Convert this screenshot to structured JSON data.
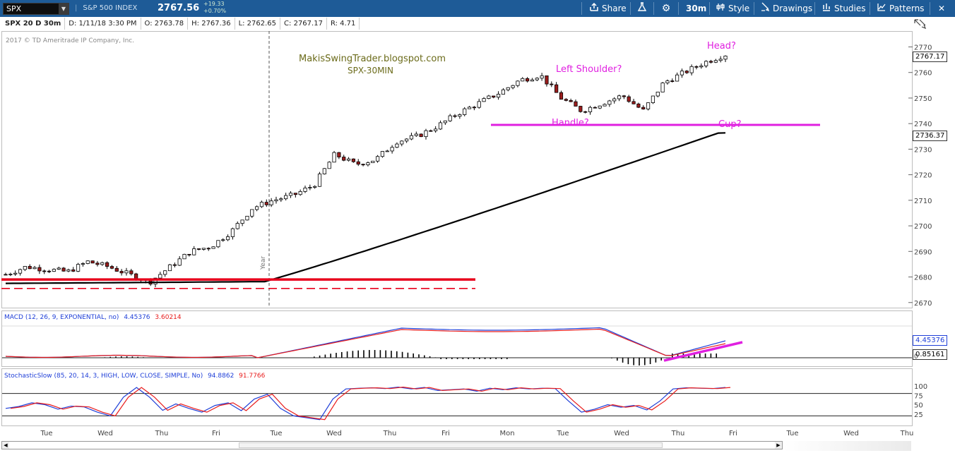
{
  "toolbar": {
    "symbol": "SPX",
    "dropdown_glyph": "▼",
    "instrument_name": "S&P 500 INDEX",
    "last_price": "2767.56",
    "change_abs": "+19.33",
    "change_pct": "+0.70%",
    "buttons": {
      "share": "Share",
      "timeframe": "30m",
      "style": "Style",
      "drawings": "Drawings",
      "studies": "Studies",
      "patterns": "Patterns"
    },
    "icons": [
      "share-icon",
      "flask-icon",
      "gear-icon",
      "style-icon",
      "drawings-icon",
      "studies-icon",
      "patterns-icon",
      "close-icon"
    ]
  },
  "info_bar": {
    "period": "SPX 20 D 30m",
    "date": "D: 1/11/18 3:30 PM",
    "open": "O: 2763.78",
    "high": "H: 2767.36",
    "low": "L: 2762.65",
    "close": "C: 2767.17",
    "range": "R: 4.71"
  },
  "copyright": "2017 © TD Ameritrade IP Company, Inc.",
  "annotations": {
    "blog": "MakisSwingTrader.blogspot.com",
    "timeframe": "SPX-30MIN",
    "head": "Head?",
    "left_shoulder": "Left Shoulder?",
    "handle": "Handle?",
    "cup": "Cup?",
    "year_marker": "Year"
  },
  "colors": {
    "toolbar_bg": "#1e5b97",
    "annotation_magenta": "#e020e0",
    "annotation_olive": "#6b6b1a",
    "support_red": "#e8001c",
    "macd_blue": "#1f3fd8",
    "macd_red": "#e81c1c",
    "candle_down": "#9b1d1d"
  },
  "chart_data": [
    {
      "type": "candlestick",
      "y_ticks": [
        2670,
        2680,
        2690,
        2700,
        2710,
        2720,
        2730,
        2740,
        2750,
        2760,
        2770
      ],
      "ylim": [
        2668,
        2774
      ],
      "x_ticks": [
        "Tue",
        "Wed",
        "Thu",
        "Fri",
        "Tue",
        "Wed",
        "Thu",
        "Fri",
        "Mon",
        "Tue",
        "Wed",
        "Thu",
        "Fri",
        "Tue",
        "Wed",
        "Thu"
      ],
      "price_labels": [
        "2767.17",
        "2736.37"
      ],
      "key_closes": [
        2681,
        2684,
        2683,
        2682,
        2686,
        2684,
        2681,
        2678,
        2684,
        2690,
        2692,
        2698,
        2707,
        2710,
        2712,
        2716,
        2728,
        2724,
        2726,
        2733,
        2735,
        2739,
        2744,
        2748,
        2752,
        2757,
        2759,
        2750,
        2745,
        2748,
        2751,
        2745,
        2756,
        2760,
        2764,
        2767
      ],
      "moving_average_end": 2736.37,
      "lines": {
        "support_solid": 2679,
        "support_dashed": 2675.5,
        "cup_line": 2739.5
      }
    },
    {
      "type": "macd",
      "title": "MACD (12, 26, 9, EXPONENTIAL, no)",
      "values": {
        "value": "4.45376",
        "avg": "3.60214"
      },
      "right_labels": [
        "4.45376",
        "0.85161"
      ],
      "zero_label": "0"
    },
    {
      "type": "stochastic",
      "title": "StochasticSlow (85, 20, 14, 3, HIGH, LOW, CLOSE, SIMPLE, No)",
      "values": {
        "k": "94.8862",
        "d": "91.7766"
      },
      "y_ticks": [
        100,
        75,
        50,
        25
      ]
    }
  ]
}
